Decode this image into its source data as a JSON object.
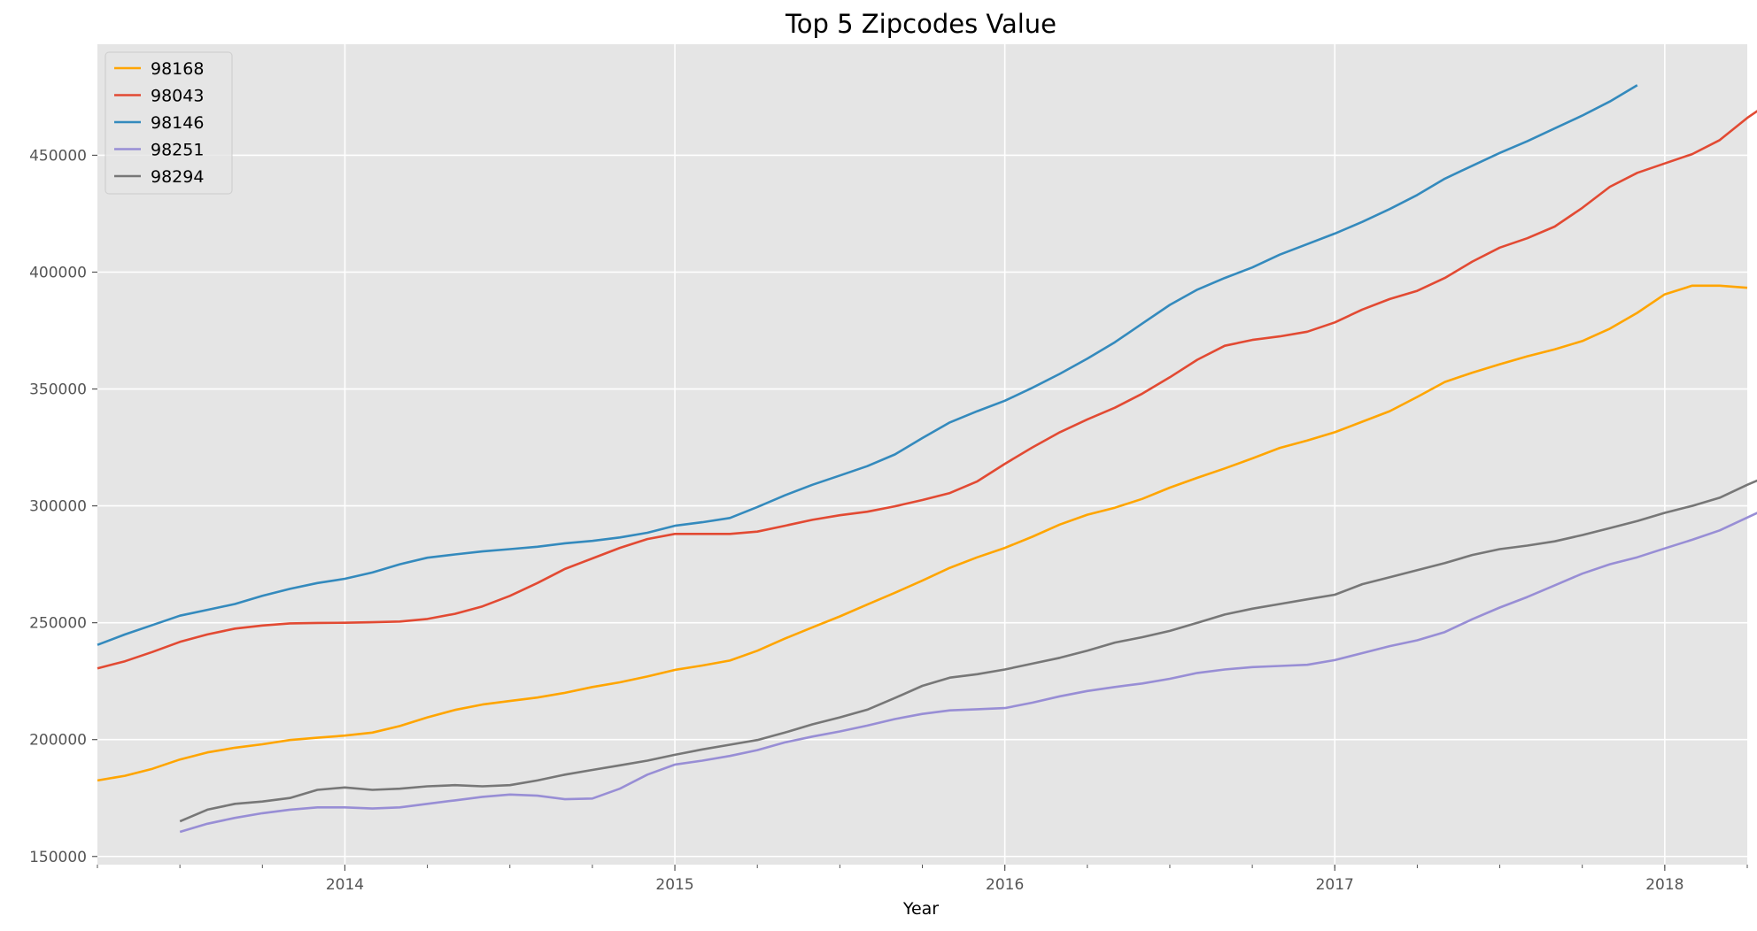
{
  "chart_data": {
    "type": "line",
    "title": "Top 5 Zipcodes Value",
    "xlabel": "Year",
    "ylabel": "",
    "x_start": "2013-04",
    "x_end": "2018-04",
    "x_ticks": [
      {
        "date": "2014-01",
        "label": "2014"
      },
      {
        "date": "2015-01",
        "label": "2015"
      },
      {
        "date": "2016-01",
        "label": "2016"
      },
      {
        "date": "2017-01",
        "label": "2017"
      },
      {
        "date": "2018-01",
        "label": "2018"
      }
    ],
    "ylim": [
      146500,
      497500
    ],
    "y_ticks": [
      150000,
      200000,
      250000,
      300000,
      350000,
      400000,
      450000
    ],
    "grid": true,
    "legend": "top-left",
    "series": [
      {
        "name": "98168",
        "color": "#ffa500",
        "start": "2013-04",
        "values": [
          182500,
          184500,
          187500,
          191500,
          194500,
          196500,
          198000,
          199800,
          200800,
          201700,
          203000,
          205800,
          209500,
          212700,
          215000,
          216500,
          218000,
          220000,
          222500,
          224500,
          227000,
          229800,
          231700,
          233800,
          238000,
          243200,
          248000,
          252700,
          257800,
          262800,
          268000,
          273500,
          278000,
          282000,
          286800,
          292000,
          296200,
          299200,
          303000,
          307800,
          312000,
          316000,
          320300,
          324800,
          328000,
          331500,
          336000,
          340500,
          346600,
          353000,
          357000,
          360600,
          364000,
          367000,
          370500,
          375800,
          382600,
          390500,
          394200,
          394200,
          393300
        ]
      },
      {
        "name": "98043",
        "color": "#e24a33",
        "start": "2013-04",
        "values": [
          230500,
          233500,
          237500,
          241800,
          245000,
          247500,
          248800,
          249700,
          249900,
          250000,
          250200,
          250500,
          251600,
          253800,
          257000,
          261500,
          267000,
          273000,
          277500,
          282000,
          285800,
          288000,
          288000,
          288000,
          289000,
          291500,
          294000,
          296000,
          297500,
          299800,
          302500,
          305500,
          310500,
          318000,
          325000,
          331500,
          337000,
          342000,
          348000,
          355000,
          362500,
          368500,
          371000,
          372500,
          374500,
          378500,
          384000,
          388500,
          392000,
          397500,
          404500,
          410500,
          414500,
          419500,
          427500,
          436500,
          442500,
          446500,
          450500,
          456500,
          466000,
          474000
        ]
      },
      {
        "name": "98146",
        "color": "#348abd",
        "start": "2013-04",
        "values": [
          240500,
          245000,
          249000,
          253000,
          255500,
          258000,
          261500,
          264500,
          267000,
          268800,
          271500,
          275000,
          277800,
          279200,
          280500,
          281500,
          282500,
          284000,
          285000,
          286500,
          288500,
          291500,
          293000,
          294800,
          299500,
          304500,
          309000,
          313000,
          317000,
          322000,
          329000,
          335700,
          340500,
          345000,
          350500,
          356500,
          363000,
          370000,
          378000,
          386000,
          392500,
          397500,
          402000,
          407500,
          412000,
          416500,
          421500,
          427000,
          433000,
          440000,
          445500,
          451000,
          456000,
          461500,
          467000,
          473000,
          480000
        ]
      },
      {
        "name": "98251",
        "color": "#988ed5",
        "start": "2013-07",
        "values": [
          160500,
          164000,
          166500,
          168500,
          170000,
          171000,
          171000,
          170500,
          171000,
          172500,
          174000,
          175500,
          176500,
          176000,
          174500,
          174800,
          179000,
          185000,
          189300,
          191000,
          193000,
          195500,
          198800,
          201300,
          203500,
          206000,
          208800,
          211000,
          212500,
          213000,
          213500,
          215800,
          218500,
          220800,
          222500,
          224000,
          226000,
          228500,
          230000,
          231000,
          231500,
          232000,
          234000,
          237000,
          240000,
          242500,
          246000,
          251500,
          256500,
          261000,
          266000,
          271000,
          275000,
          278000,
          281800,
          285500,
          289500,
          295000,
          300500
        ]
      },
      {
        "name": "98294",
        "color": "#777777",
        "start": "2013-07",
        "values": [
          165000,
          170000,
          172500,
          173500,
          175000,
          178500,
          179500,
          178500,
          179000,
          180000,
          180500,
          180000,
          180500,
          182500,
          185000,
          187000,
          189000,
          191000,
          193500,
          195800,
          197800,
          199800,
          203000,
          206500,
          209500,
          212800,
          217800,
          223000,
          226500,
          228000,
          230000,
          232500,
          235000,
          238000,
          241500,
          243800,
          246500,
          250000,
          253500,
          256000,
          258000,
          260000,
          262000,
          266500,
          269500,
          272500,
          275500,
          279000,
          281500,
          283000,
          284800,
          287500,
          290500,
          293500,
          297000,
          300000,
          303500,
          309000,
          314000
        ]
      }
    ]
  }
}
